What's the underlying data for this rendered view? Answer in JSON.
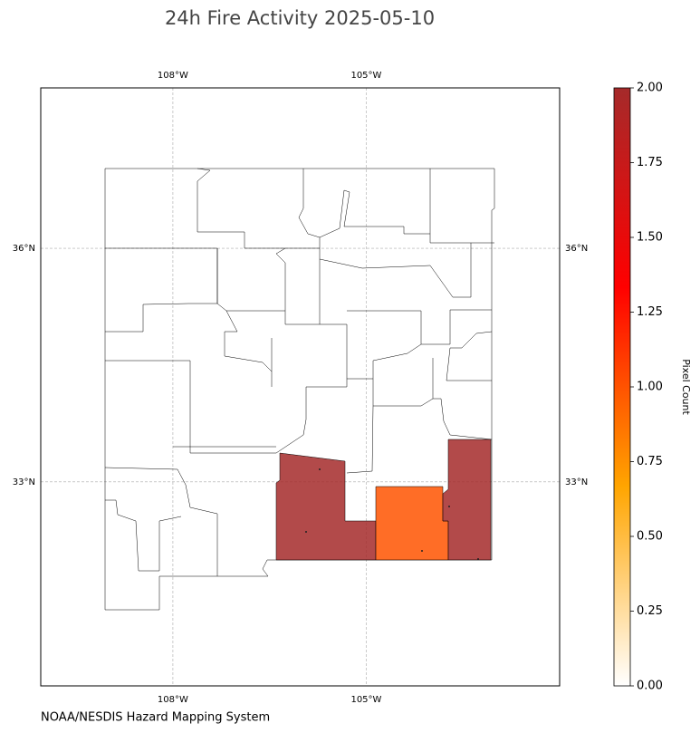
{
  "chart_data": {
    "type": "choropleth",
    "title": "24h Fire Activity 2025-05-10",
    "source": "NOAA/NESDIS Hazard Mapping System",
    "xlim": [
      -110.05,
      -102.0
    ],
    "ylim": [
      30.38,
      38.06
    ],
    "xticks": [
      {
        "value": -108,
        "label": "108°W"
      },
      {
        "value": -105,
        "label": "105°W"
      }
    ],
    "yticks": [
      {
        "value": 36,
        "label": "36°N"
      },
      {
        "value": 33,
        "label": "33°N"
      }
    ],
    "grid": true,
    "regions": [
      {
        "value": 2
      },
      {
        "value": 1
      },
      {
        "value": 2
      }
    ],
    "colorbar": {
      "label": "Pixel Count",
      "lim": [
        0,
        2
      ],
      "colormap": [
        "#ffffff",
        "#ffa500",
        "#ff0000",
        "#a52a2a"
      ],
      "ticks": [
        {
          "value": 0,
          "label": "0.00"
        },
        {
          "value": 0.25,
          "label": "0.25"
        },
        {
          "value": 0.5,
          "label": "0.50"
        },
        {
          "value": 0.75,
          "label": "0.75"
        },
        {
          "value": 1,
          "label": "1.00"
        },
        {
          "value": 1.25,
          "label": "1.25"
        },
        {
          "value": 1.5,
          "label": "1.50"
        },
        {
          "value": 1.75,
          "label": "1.75"
        },
        {
          "value": 2,
          "label": "2.00"
        }
      ]
    }
  }
}
